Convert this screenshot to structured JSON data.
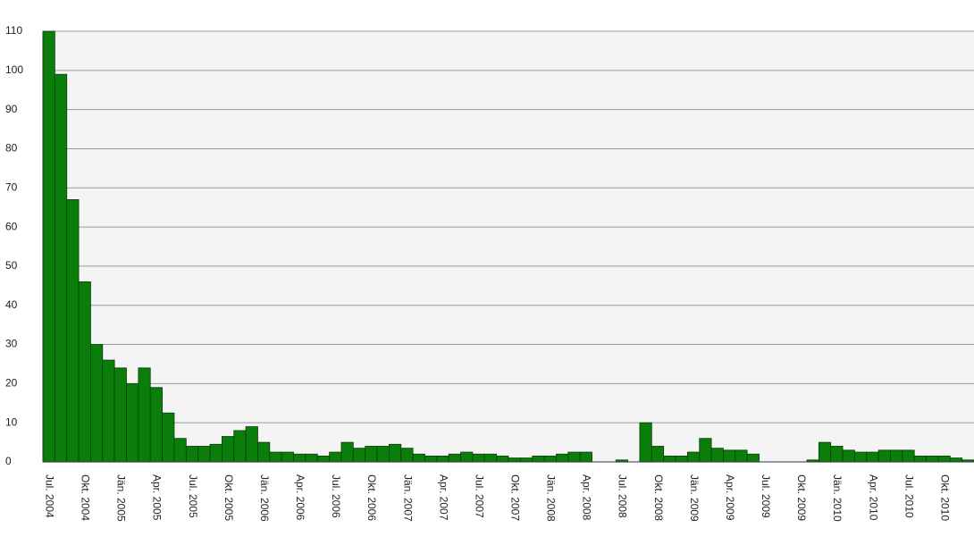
{
  "chart_data": {
    "type": "bar",
    "categories": [
      "Jul. 2004",
      null,
      null,
      "Okt. 2004",
      null,
      null,
      "Jän. 2005",
      null,
      null,
      "Apr. 2005",
      null,
      null,
      "Jul. 2005",
      null,
      null,
      "Okt. 2005",
      null,
      null,
      "Jän. 2006",
      null,
      null,
      "Apr. 2006",
      null,
      null,
      "Jul. 2006",
      null,
      null,
      "Okt. 2006",
      null,
      null,
      "Jän. 2007",
      null,
      null,
      "Apr. 2007",
      null,
      null,
      "Jul. 2007",
      null,
      null,
      "Okt. 2007",
      null,
      null,
      "Jän. 2008",
      null,
      null,
      "Apr. 2008",
      null,
      null,
      "Jul. 2008",
      null,
      null,
      "Okt. 2008",
      null,
      null,
      "Jän. 2009",
      null,
      null,
      "Apr. 2009",
      null,
      null,
      "Jul. 2009",
      null,
      null,
      "Okt. 2009",
      null,
      null,
      "Jän. 2010",
      null,
      null,
      "Apr. 2010",
      null,
      null,
      "Jul. 2010",
      null,
      null,
      "Okt. 2010",
      null,
      null
    ],
    "values": [
      110,
      99,
      67,
      46,
      30,
      26,
      24,
      20,
      24,
      19,
      12.5,
      6,
      4,
      4,
      4.5,
      6.5,
      8,
      9,
      5,
      2.5,
      2.5,
      2,
      2,
      1.5,
      2.5,
      5,
      3.5,
      4,
      4,
      4.5,
      3.5,
      2,
      1.5,
      1.5,
      2,
      2.5,
      2,
      2,
      1.5,
      1,
      1,
      1.5,
      1.5,
      2,
      2.5,
      2.5,
      0,
      0,
      0.5,
      0,
      10,
      4,
      1.5,
      1.5,
      2.5,
      6,
      3.5,
      3,
      3,
      2,
      0,
      0,
      0,
      0,
      0.5,
      5,
      4,
      3,
      2.5,
      2.5,
      3,
      3,
      3,
      1.5,
      1.5,
      1.5,
      1,
      0.5
    ],
    "color": "#0b7d0b",
    "ylim": [
      0,
      110
    ],
    "yticks": [
      0,
      10,
      20,
      30,
      40,
      50,
      60,
      70,
      80,
      90,
      100,
      110
    ],
    "grid": true
  }
}
